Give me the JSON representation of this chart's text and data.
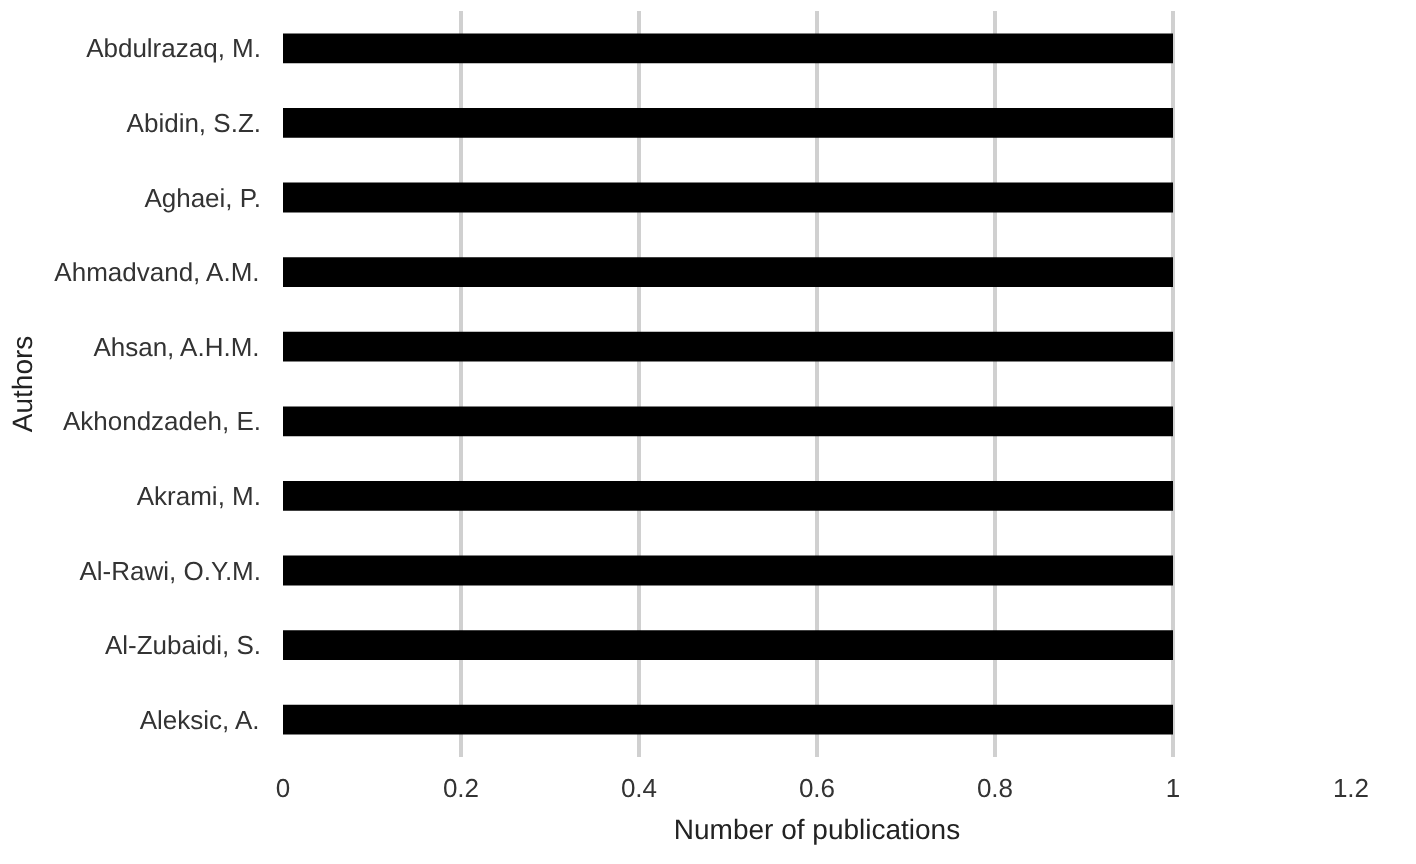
{
  "chart_data": {
    "type": "bar",
    "orientation": "horizontal",
    "xlabel": "Number of publications",
    "ylabel": "Authors",
    "categories": [
      "Abdulrazaq, M.",
      "Abidin, S.Z.",
      "Aghaei, P.",
      "Ahmadvand, A.M.",
      "Ahsan, A.H.M.",
      "Akhondzadeh, E.",
      "Akrami, M.",
      "Al-Rawi, O.Y.M.",
      "Al-Zubaidi, S.",
      "Aleksic, A."
    ],
    "values": [
      1,
      1,
      1,
      1,
      1,
      1,
      1,
      1,
      1,
      1
    ],
    "color": "#000000",
    "xlim": [
      0,
      1.2
    ],
    "xticks": [
      0,
      0.2,
      0.4,
      0.6,
      0.8,
      1,
      1.2
    ],
    "grid": "x"
  }
}
